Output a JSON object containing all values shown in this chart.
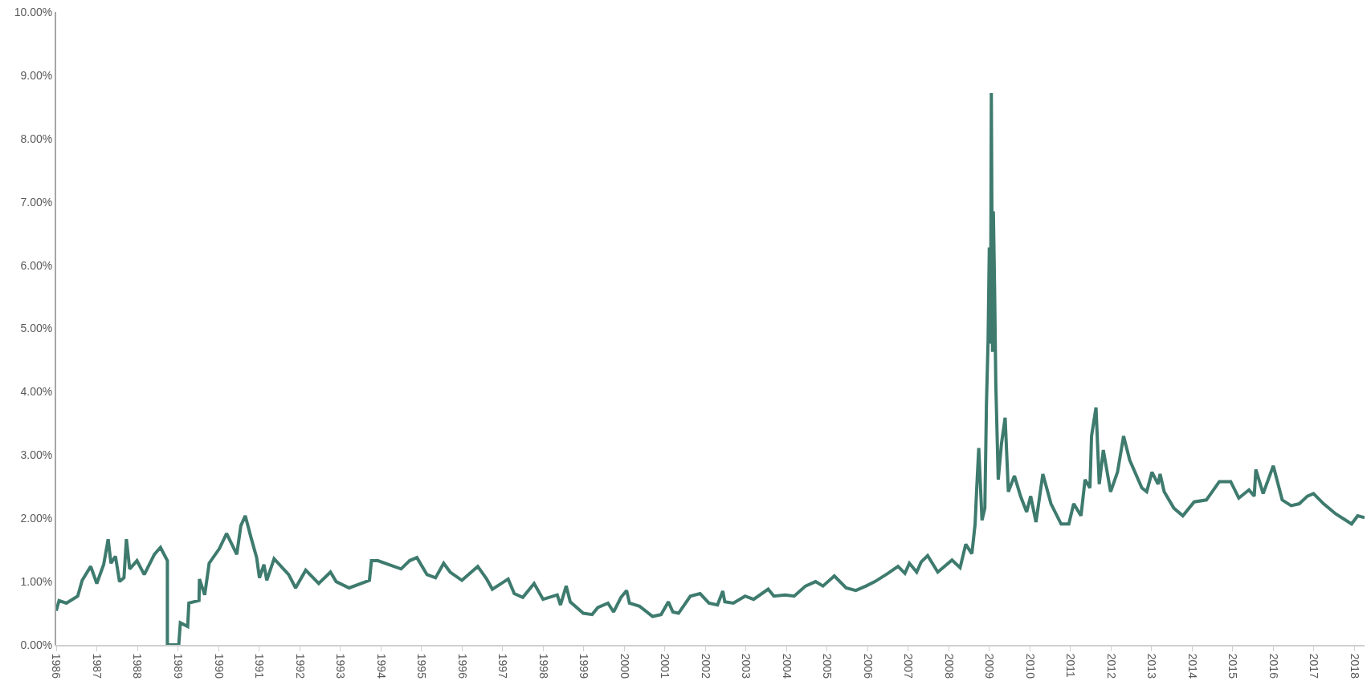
{
  "chart_data": {
    "type": "line",
    "marker": "none",
    "line_style": "solid",
    "xlim": [
      1986,
      2018.25
    ],
    "xticks": [
      1986,
      1987,
      1988,
      1989,
      1990,
      1991,
      1992,
      1993,
      1994,
      1995,
      1996,
      1997,
      1998,
      1999,
      2000,
      2001,
      2002,
      2003,
      2004,
      2005,
      2006,
      2007,
      2008,
      2009,
      2010,
      2011,
      2012,
      2013,
      2014,
      2015,
      2016,
      2017,
      2018
    ],
    "ylim": [
      0,
      10
    ],
    "yticks": [
      {
        "value": 0,
        "label": "0.00%"
      },
      {
        "value": 1,
        "label": "1.00%"
      },
      {
        "value": 2,
        "label": "2.00%"
      },
      {
        "value": 3,
        "label": "3.00%"
      },
      {
        "value": 4,
        "label": "4.00%"
      },
      {
        "value": 5,
        "label": "5.00%"
      },
      {
        "value": 6,
        "label": "6.00%"
      },
      {
        "value": 7,
        "label": "7.00%"
      },
      {
        "value": 8,
        "label": "8.00%"
      },
      {
        "value": 9,
        "label": "9.00%"
      },
      {
        "value": 10,
        "label": "10.00%"
      }
    ],
    "series": [
      {
        "color": "#3e7b6e",
        "x": [
          1986.0,
          1986.07,
          1986.25,
          1986.53,
          1986.64,
          1986.85,
          1987.0,
          1987.17,
          1987.28,
          1987.35,
          1987.46,
          1987.56,
          1987.67,
          1987.73,
          1987.81,
          1987.99,
          1988.17,
          1988.42,
          1988.57,
          1988.74,
          1988.74,
          1989.02,
          1989.06,
          1989.24,
          1989.27,
          1989.52,
          1989.53,
          1989.66,
          1989.77,
          1990.02,
          1990.2,
          1990.45,
          1990.55,
          1990.66,
          1990.8,
          1990.94,
          1991.01,
          1991.12,
          1991.19,
          1991.37,
          1991.73,
          1991.9,
          1992.15,
          1992.47,
          1992.76,
          1992.9,
          1993.22,
          1993.72,
          1993.77,
          1993.93,
          1994.5,
          1994.71,
          1994.89,
          1995.14,
          1995.35,
          1995.55,
          1995.71,
          1996.0,
          1996.39,
          1996.61,
          1996.75,
          1997.14,
          1997.29,
          1997.5,
          1997.78,
          1998.0,
          1998.35,
          1998.43,
          1998.57,
          1998.67,
          1998.99,
          1999.21,
          1999.35,
          1999.6,
          1999.74,
          1999.92,
          2000.06,
          2000.13,
          2000.38,
          2000.7,
          2000.91,
          2001.09,
          2001.2,
          2001.34,
          2001.63,
          2001.87,
          2002.09,
          2002.3,
          2002.43,
          2002.48,
          2002.69,
          2002.98,
          2003.19,
          2003.55,
          2003.69,
          2003.97,
          2004.19,
          2004.47,
          2004.72,
          2004.9,
          2005.18,
          2005.47,
          2005.71,
          2005.96,
          2006.18,
          2006.5,
          2006.75,
          2006.92,
          2007.03,
          2007.21,
          2007.32,
          2007.48,
          2007.73,
          2008.08,
          2008.28,
          2008.42,
          2008.57,
          2008.65,
          2008.69,
          2008.74,
          2008.82,
          2008.89,
          2008.93,
          2008.97,
          2009.0,
          2009.03,
          2009.05,
          2009.08,
          2009.1,
          2009.13,
          2009.16,
          2009.22,
          2009.3,
          2009.39,
          2009.47,
          2009.62,
          2009.77,
          2009.92,
          2010.02,
          2010.15,
          2010.32,
          2010.52,
          2010.77,
          2010.96,
          2011.08,
          2011.26,
          2011.36,
          2011.48,
          2011.52,
          2011.63,
          2011.71,
          2011.81,
          2011.99,
          2012.16,
          2012.31,
          2012.46,
          2012.76,
          2012.88,
          2013.01,
          2013.16,
          2013.21,
          2013.31,
          2013.55,
          2013.77,
          2014.05,
          2014.35,
          2014.67,
          2014.95,
          2015.15,
          2015.4,
          2015.53,
          2015.57,
          2015.75,
          2016.0,
          2016.22,
          2016.44,
          2016.64,
          2016.84,
          2016.99,
          2017.24,
          2017.54,
          2017.93,
          2018.08,
          2018.25
        ],
        "values": [
          0.54,
          0.7,
          0.66,
          0.77,
          1.02,
          1.24,
          0.97,
          1.27,
          1.67,
          1.29,
          1.4,
          1.0,
          1.06,
          1.67,
          1.2,
          1.33,
          1.11,
          1.43,
          1.54,
          1.33,
          0.0,
          0.0,
          0.35,
          0.29,
          0.66,
          0.7,
          1.04,
          0.79,
          1.29,
          1.52,
          1.76,
          1.43,
          1.88,
          2.04,
          1.7,
          1.38,
          1.06,
          1.27,
          1.02,
          1.36,
          1.11,
          0.9,
          1.18,
          0.97,
          1.15,
          1.0,
          0.9,
          1.02,
          1.33,
          1.33,
          1.2,
          1.33,
          1.38,
          1.11,
          1.06,
          1.29,
          1.15,
          1.02,
          1.24,
          1.04,
          0.88,
          1.04,
          0.81,
          0.75,
          0.97,
          0.72,
          0.79,
          0.63,
          0.93,
          0.68,
          0.5,
          0.48,
          0.59,
          0.66,
          0.52,
          0.75,
          0.86,
          0.66,
          0.61,
          0.45,
          0.48,
          0.68,
          0.52,
          0.5,
          0.77,
          0.81,
          0.66,
          0.63,
          0.85,
          0.68,
          0.66,
          0.77,
          0.72,
          0.88,
          0.77,
          0.79,
          0.77,
          0.93,
          1.0,
          0.93,
          1.09,
          0.9,
          0.86,
          0.93,
          1.0,
          1.13,
          1.24,
          1.13,
          1.29,
          1.15,
          1.31,
          1.41,
          1.15,
          1.34,
          1.22,
          1.59,
          1.44,
          1.91,
          2.48,
          3.11,
          1.97,
          2.16,
          3.81,
          4.82,
          6.28,
          4.76,
          8.72,
          4.63,
          6.85,
          5.65,
          4.13,
          2.61,
          3.18,
          3.59,
          2.42,
          2.67,
          2.35,
          2.1,
          2.35,
          1.94,
          2.7,
          2.23,
          1.91,
          1.91,
          2.23,
          2.04,
          2.61,
          2.48,
          3.3,
          3.75,
          2.54,
          3.08,
          2.42,
          2.73,
          3.3,
          2.92,
          2.48,
          2.42,
          2.73,
          2.54,
          2.7,
          2.42,
          2.16,
          2.04,
          2.26,
          2.29,
          2.58,
          2.58,
          2.32,
          2.45,
          2.35,
          2.77,
          2.39,
          2.83,
          2.29,
          2.2,
          2.23,
          2.35,
          2.39,
          2.23,
          2.07,
          1.91,
          2.04,
          2.01
        ]
      }
    ]
  }
}
